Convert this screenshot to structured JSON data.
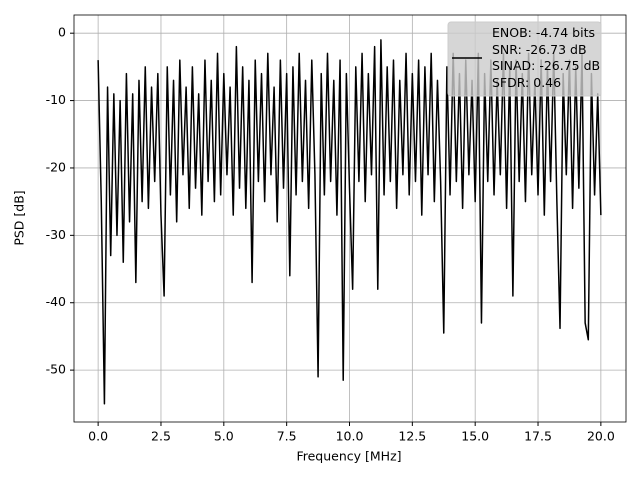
{
  "chart_data": {
    "type": "line",
    "xlabel": "Frequency [MHz]",
    "ylabel": "PSD [dB]",
    "x": [
      0,
      0.125,
      0.25,
      0.375,
      0.5,
      0.625,
      0.75,
      0.875,
      1,
      1.125,
      1.25,
      1.375,
      1.5,
      1.625,
      1.75,
      1.875,
      2,
      2.125,
      2.25,
      2.375,
      2.5,
      2.625,
      2.75,
      2.875,
      3,
      3.125,
      3.25,
      3.375,
      3.5,
      3.625,
      3.75,
      3.875,
      4,
      4.125,
      4.25,
      4.375,
      4.5,
      4.625,
      4.75,
      4.875,
      5,
      5.125,
      5.25,
      5.375,
      5.5,
      5.625,
      5.75,
      5.875,
      6,
      6.125,
      6.25,
      6.375,
      6.5,
      6.625,
      6.75,
      6.875,
      7,
      7.125,
      7.25,
      7.375,
      7.5,
      7.625,
      7.75,
      7.875,
      8,
      8.125,
      8.25,
      8.375,
      8.5,
      8.625,
      8.75,
      8.875,
      9,
      9.125,
      9.25,
      9.375,
      9.5,
      9.625,
      9.75,
      9.875,
      10,
      10.125,
      10.25,
      10.375,
      10.5,
      10.625,
      10.75,
      10.875,
      11,
      11.125,
      11.25,
      11.375,
      11.5,
      11.625,
      11.75,
      11.875,
      12,
      12.125,
      12.25,
      12.375,
      12.5,
      12.625,
      12.75,
      12.875,
      13,
      13.125,
      13.25,
      13.375,
      13.5,
      13.625,
      13.75,
      13.875,
      14,
      14.125,
      14.25,
      14.375,
      14.5,
      14.625,
      14.75,
      14.875,
      15,
      15.125,
      15.25,
      15.375,
      15.5,
      15.625,
      15.75,
      15.875,
      16,
      16.125,
      16.25,
      16.375,
      16.5,
      16.625,
      16.75,
      16.875,
      17,
      17.125,
      17.25,
      17.375,
      17.5,
      17.625,
      17.75,
      17.875,
      18,
      18.125,
      18.25,
      18.375,
      18.5,
      18.625,
      18.75,
      18.875,
      19,
      19.125,
      19.25,
      19.375,
      19.5,
      19.625,
      19.75,
      19.875,
      20
    ],
    "series": [
      {
        "name": "ENOB: -4.74 bits\nSNR: -26.73 dB\nSINAD: -26.75 dB\nSFDR: 0.46",
        "color": "#000000",
        "values": [
          -4,
          -25,
          -55,
          -8,
          -33,
          -9,
          -30,
          -10,
          -34,
          -6,
          -28,
          -9,
          -37,
          -7,
          -25,
          -5,
          -26,
          -8,
          -22,
          -6,
          -27,
          -39,
          -5,
          -24,
          -7,
          -28,
          -4,
          -21,
          -8,
          -26,
          -5,
          -23,
          -9,
          -27,
          -4,
          -22,
          -7,
          -25,
          -3,
          -24,
          -6,
          -21,
          -8,
          -27,
          -2,
          -23,
          -5,
          -26,
          -7,
          -37,
          -4,
          -22,
          -6,
          -25,
          -3,
          -21,
          -8,
          -28,
          -4,
          -23,
          -6,
          -36,
          -5,
          -24,
          -3,
          -22,
          -7,
          -26,
          -4,
          -21,
          -51,
          -6,
          -24,
          -3,
          -22,
          -7,
          -27,
          -4,
          -51.5,
          -6,
          -23,
          -38,
          -5,
          -22,
          -3,
          -25,
          -6,
          -21,
          -2,
          -38,
          -1,
          -24,
          -5,
          -22,
          -4,
          -26,
          -7,
          -21,
          -3,
          -24,
          -6,
          -22,
          -4,
          -27,
          -5,
          -21,
          -3,
          -25,
          -7,
          -22,
          -44.5,
          -5,
          -24,
          -3,
          -22,
          -6,
          -26,
          -4,
          -21,
          -7,
          -25,
          -3,
          -43,
          -6,
          -22,
          -4,
          -24,
          -7,
          -21,
          -3,
          -26,
          -5,
          -39,
          -4,
          -22,
          -6,
          -25,
          -3,
          -21,
          -7,
          -24,
          -4,
          -27,
          -5,
          -22,
          -3,
          -25,
          -43.8,
          -6,
          -21,
          -4,
          -26,
          -5,
          -23,
          -3,
          -43,
          -45.5,
          -6,
          -24,
          -9,
          -27
        ]
      }
    ],
    "xlim": [
      -0.96,
      21.0
    ],
    "ylim": [
      -57.7,
      2.7
    ],
    "xticks": [
      {
        "value": 0,
        "label": "0.0"
      },
      2.5,
      {
        "value": 5,
        "label": "5.0"
      },
      7.5,
      {
        "value": 10,
        "label": "10.0"
      },
      12.5,
      {
        "value": 15,
        "label": "15.0"
      },
      17.5,
      {
        "value": 20,
        "label": "20.0"
      }
    ],
    "yticks": [
      0,
      -10,
      -20,
      -30,
      -40,
      -50
    ],
    "grid": true,
    "legend": "upper right"
  }
}
